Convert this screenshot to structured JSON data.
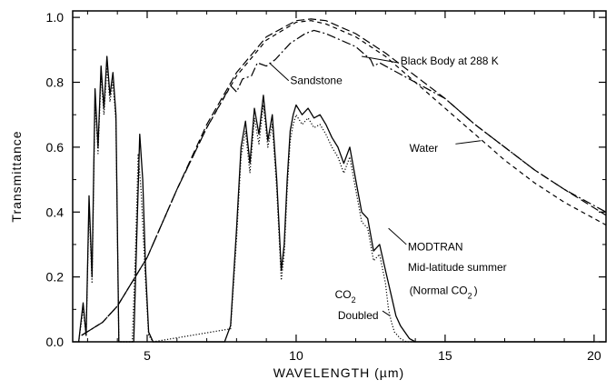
{
  "chart_data": {
    "type": "line",
    "title": "",
    "xlabel": "WAVELENGTH (µm)",
    "ylabel": "Transmittance",
    "xlim": [
      2.5,
      20.4
    ],
    "ylim": [
      0.0,
      1.02
    ],
    "xticks": [
      5,
      10,
      15,
      20
    ],
    "yticks": [
      0.0,
      0.2,
      0.4,
      0.6,
      0.8,
      1.0
    ],
    "xtick_labels": [
      "5",
      "10",
      "15",
      "20"
    ],
    "ytick_labels": [
      "0.0",
      "0.2",
      "0.4",
      "0.6",
      "0.8",
      "1.0"
    ],
    "grid": false,
    "series": [
      {
        "name": "Black Body at 288 K",
        "style": "long-dash",
        "x": [
          2.8,
          3.5,
          4.0,
          5.0,
          6.0,
          7.0,
          8.0,
          9.0,
          10.0,
          10.5,
          11.0,
          12.0,
          13.0,
          14.0,
          15.0,
          16.0,
          17.0,
          18.0,
          19.0,
          20.4
        ],
        "y": [
          0.02,
          0.06,
          0.11,
          0.26,
          0.47,
          0.67,
          0.83,
          0.94,
          0.99,
          0.995,
          0.99,
          0.95,
          0.89,
          0.82,
          0.75,
          0.67,
          0.6,
          0.53,
          0.47,
          0.39
        ]
      },
      {
        "name": "Sandstone",
        "style": "dash-dot",
        "x": [
          2.8,
          3.5,
          4.0,
          5.0,
          6.0,
          7.0,
          7.8,
          8.0,
          8.2,
          8.5,
          8.7,
          9.0,
          9.3,
          9.8,
          10.3,
          10.6,
          11.0,
          12.0,
          12.5,
          12.6,
          12.8,
          13.0,
          14.0,
          15.0,
          16.0,
          17.0,
          18.0,
          19.0,
          20.4
        ],
        "y": [
          0.02,
          0.06,
          0.11,
          0.26,
          0.47,
          0.66,
          0.79,
          0.77,
          0.81,
          0.82,
          0.86,
          0.85,
          0.87,
          0.92,
          0.95,
          0.96,
          0.95,
          0.91,
          0.87,
          0.85,
          0.86,
          0.85,
          0.8,
          0.75,
          0.67,
          0.6,
          0.53,
          0.47,
          0.4
        ]
      },
      {
        "name": "Water",
        "style": "short-dash",
        "x": [
          2.8,
          3.5,
          4.0,
          5.0,
          6.0,
          7.0,
          8.0,
          9.0,
          10.0,
          10.5,
          11.0,
          12.0,
          13.0,
          14.0,
          15.0,
          16.0,
          17.0,
          18.0,
          19.0,
          20.4
        ],
        "y": [
          0.02,
          0.06,
          0.11,
          0.26,
          0.47,
          0.66,
          0.82,
          0.93,
          0.985,
          0.99,
          0.98,
          0.94,
          0.88,
          0.8,
          0.72,
          0.64,
          0.56,
          0.49,
          0.43,
          0.36
        ]
      },
      {
        "name": "MODTRAN Mid-latitude summer (Normal CO2)",
        "style": "solid",
        "x": [
          2.7,
          2.85,
          2.95,
          3.05,
          3.15,
          3.25,
          3.35,
          3.45,
          3.55,
          3.65,
          3.75,
          3.85,
          3.95,
          4.05,
          4.15,
          4.25,
          4.35,
          4.45,
          4.55,
          4.65,
          4.75,
          4.85,
          4.95,
          5.05,
          5.2,
          5.5,
          6.0,
          6.5,
          7.0,
          7.4,
          7.6,
          7.8,
          8.0,
          8.15,
          8.3,
          8.45,
          8.6,
          8.75,
          8.9,
          9.05,
          9.2,
          9.35,
          9.5,
          9.6,
          9.7,
          9.8,
          9.9,
          10.0,
          10.2,
          10.4,
          10.6,
          10.8,
          11.0,
          11.2,
          11.4,
          11.6,
          11.8,
          12.0,
          12.2,
          12.4,
          12.6,
          12.8,
          13.0,
          13.2,
          13.35,
          13.5,
          13.65,
          13.8,
          14.0,
          14.5,
          15.0,
          17.0,
          20.0
        ],
        "y": [
          0.0,
          0.12,
          0.02,
          0.45,
          0.2,
          0.78,
          0.6,
          0.85,
          0.72,
          0.88,
          0.76,
          0.83,
          0.7,
          0.0,
          0.0,
          0.0,
          0.0,
          0.0,
          0.0,
          0.32,
          0.64,
          0.5,
          0.22,
          0.03,
          0.0,
          0.0,
          0.0,
          0.0,
          0.0,
          0.0,
          0.0,
          0.05,
          0.35,
          0.6,
          0.68,
          0.55,
          0.72,
          0.64,
          0.76,
          0.62,
          0.7,
          0.5,
          0.22,
          0.3,
          0.5,
          0.65,
          0.7,
          0.73,
          0.7,
          0.72,
          0.69,
          0.7,
          0.67,
          0.63,
          0.6,
          0.55,
          0.6,
          0.5,
          0.4,
          0.38,
          0.28,
          0.3,
          0.22,
          0.14,
          0.08,
          0.05,
          0.03,
          0.01,
          0.0,
          0.0,
          0.0,
          0.0,
          0.0
        ]
      },
      {
        "name": "CO2 Doubled",
        "style": "dotted",
        "x": [
          2.7,
          2.85,
          2.95,
          3.05,
          3.15,
          3.25,
          3.35,
          3.45,
          3.55,
          3.65,
          3.75,
          3.85,
          3.95,
          4.05,
          4.5,
          4.6,
          4.7,
          4.8,
          4.95,
          5.05,
          5.2,
          7.8,
          8.0,
          8.15,
          8.3,
          8.45,
          8.6,
          8.75,
          8.9,
          9.05,
          9.2,
          9.35,
          9.5,
          9.6,
          9.7,
          9.8,
          9.9,
          10.0,
          10.2,
          10.4,
          10.6,
          10.8,
          11.0,
          11.2,
          11.4,
          11.6,
          11.8,
          12.0,
          12.2,
          12.4,
          12.6,
          12.8,
          13.0,
          13.1,
          13.2,
          13.3,
          13.5,
          13.7,
          14.0
        ],
        "y": [
          0.0,
          0.1,
          0.02,
          0.42,
          0.18,
          0.75,
          0.58,
          0.82,
          0.7,
          0.85,
          0.74,
          0.8,
          0.68,
          0.0,
          0.0,
          0.26,
          0.58,
          0.46,
          0.18,
          0.02,
          0.0,
          0.04,
          0.32,
          0.57,
          0.65,
          0.52,
          0.69,
          0.61,
          0.73,
          0.6,
          0.67,
          0.47,
          0.19,
          0.27,
          0.47,
          0.62,
          0.67,
          0.7,
          0.67,
          0.69,
          0.66,
          0.67,
          0.64,
          0.6,
          0.57,
          0.52,
          0.57,
          0.47,
          0.37,
          0.35,
          0.25,
          0.27,
          0.18,
          0.1,
          0.06,
          0.03,
          0.01,
          0.0,
          0.0
        ]
      }
    ],
    "annotations": [
      {
        "text": "Black Body at 288 K",
        "x": 13.5,
        "y": 0.855
      },
      {
        "text": "Sandstone",
        "x": 9.8,
        "y": 0.795
      },
      {
        "text": "Water",
        "x": 13.8,
        "y": 0.585
      },
      {
        "text": "MODTRAN",
        "x": 13.75,
        "y": 0.282
      },
      {
        "text": "Mid-latitude summer",
        "x": 13.75,
        "y": 0.218
      },
      {
        "text": "(Normal CO",
        "x": 13.8,
        "y": 0.147,
        "subscript": "2",
        "suffix": ")"
      },
      {
        "text": "CO",
        "x": 11.3,
        "y": 0.135,
        "subscript": "2"
      },
      {
        "text": "Doubled",
        "x": 11.4,
        "y": 0.07
      }
    ]
  }
}
